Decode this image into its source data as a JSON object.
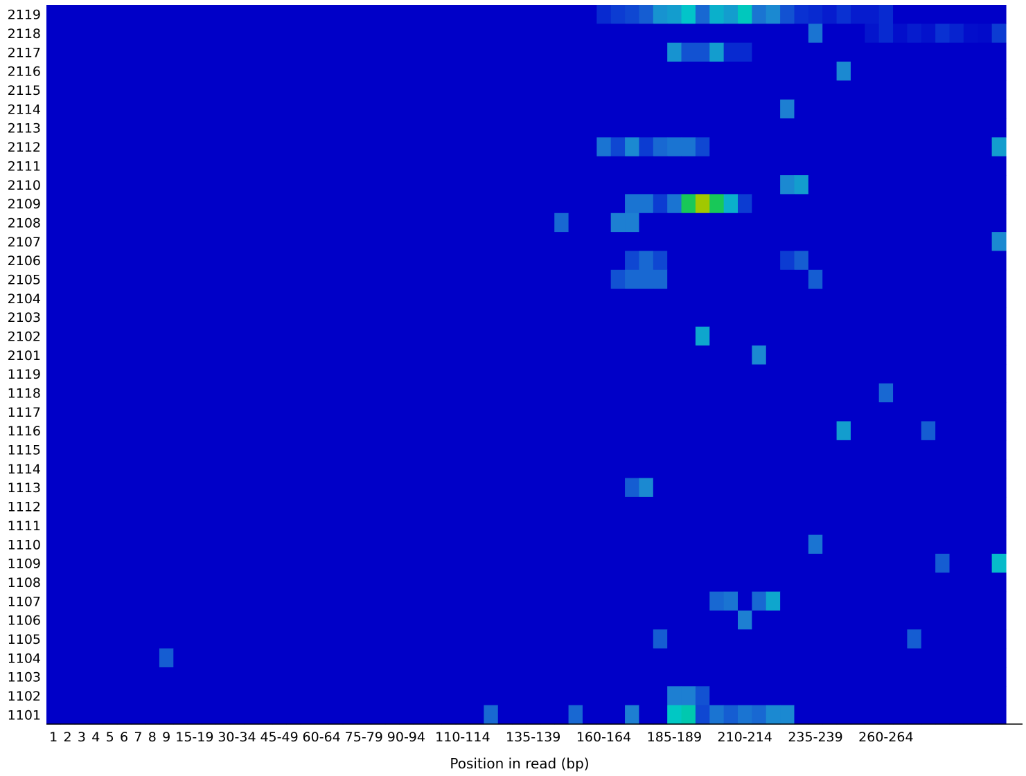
{
  "chart_data": {
    "type": "heatmap",
    "title": "",
    "xlabel": "Position in read (bp)",
    "ylabel": "",
    "grid": false,
    "legend": "none",
    "colormap": [
      "#0000c8",
      "#0a32d2",
      "#1e82d2",
      "#00c8c8",
      "#00c896",
      "#32c814",
      "#a0c800",
      "#c8c800"
    ],
    "x_categories": [
      "1",
      "2",
      "3",
      "4",
      "5",
      "6",
      "7",
      "8",
      "9",
      "10-14",
      "15-19",
      "20-24",
      "25-29",
      "30-34",
      "35-39",
      "40-44",
      "45-49",
      "50-54",
      "55-59",
      "60-64",
      "65-69",
      "70-74",
      "75-79",
      "80-84",
      "85-89",
      "90-94",
      "95-99",
      "100-104",
      "105-109",
      "110-114",
      "115-119",
      "120-124",
      "125-129",
      "130-134",
      "135-139",
      "140-144",
      "145-149",
      "150-154",
      "155-159",
      "160-164",
      "165-169",
      "170-174",
      "175-179",
      "180-184",
      "185-189",
      "190-194",
      "195-199",
      "200-204",
      "205-209",
      "210-214",
      "215-219",
      "220-224",
      "225-229",
      "230-234",
      "235-239",
      "240-244",
      "245-249",
      "250-254",
      "255-259",
      "260-264",
      "265-269",
      "270-274",
      "275-279",
      "280-284",
      "285-289",
      "290-294",
      "295-299",
      "300-301"
    ],
    "x_tick_labels": [
      "1",
      "2",
      "3",
      "4",
      "5",
      "6",
      "7",
      "8",
      "9",
      "15-19",
      "30-34",
      "45-49",
      "60-64",
      "75-79",
      "90-94",
      "110-114",
      "135-139",
      "160-164",
      "185-189",
      "210-214",
      "235-239",
      "260-264"
    ],
    "y_categories": [
      "2119",
      "2118",
      "2117",
      "2116",
      "2115",
      "2114",
      "2113",
      "2112",
      "2111",
      "2110",
      "2109",
      "2108",
      "2107",
      "2106",
      "2105",
      "2104",
      "2103",
      "2102",
      "2101",
      "1119",
      "1118",
      "1117",
      "1116",
      "1115",
      "1114",
      "1113",
      "1112",
      "1111",
      "1110",
      "1109",
      "1108",
      "1107",
      "1106",
      "1105",
      "1104",
      "1103",
      "1102",
      "1101"
    ],
    "value_scale": [
      0,
      10
    ],
    "hotspots": [
      {
        "y": "2119",
        "x": [
          "160-164",
          "165-169",
          "170-174",
          "175-179",
          "180-184",
          "185-189",
          "190-194",
          "195-199",
          "200-204",
          "205-209",
          "210-214",
          "215-219",
          "220-224",
          "225-229",
          "230-234",
          "235-239",
          "240-244",
          "245-249",
          "250-254",
          "255-259",
          "260-264"
        ],
        "values": [
          1.2,
          1.6,
          1.8,
          2.2,
          3.2,
          3.4,
          4.2,
          2.4,
          3.8,
          3.4,
          4.6,
          2.6,
          3.0,
          2.0,
          1.4,
          1.2,
          0.8,
          1.4,
          0.8,
          0.8,
          1.2
        ]
      },
      {
        "y": "2118",
        "x": [
          "235-239",
          "255-259",
          "260-264",
          "265-269",
          "270-274",
          "275-279",
          "280-284",
          "285-289",
          "290-294",
          "295-299",
          "300-301"
        ],
        "values": [
          2.6,
          0.6,
          1.2,
          0.4,
          0.8,
          0.5,
          1.4,
          1.0,
          0.4,
          0.3,
          1.6
        ]
      },
      {
        "y": "2117",
        "x": [
          "185-189",
          "190-194",
          "195-199",
          "200-204",
          "205-209",
          "210-214"
        ],
        "values": [
          3.2,
          2.0,
          2.0,
          3.4,
          1.2,
          1.2
        ]
      },
      {
        "y": "2116",
        "x": [
          "245-249"
        ],
        "values": [
          3.0
        ]
      },
      {
        "y": "2114",
        "x": [
          "225-229"
        ],
        "values": [
          2.8
        ]
      },
      {
        "y": "2112",
        "x": [
          "160-164",
          "165-169",
          "170-174",
          "175-179",
          "180-184",
          "185-189",
          "190-194",
          "195-199",
          "300-301"
        ],
        "values": [
          2.6,
          1.8,
          3.0,
          1.6,
          2.4,
          2.6,
          2.6,
          1.8,
          3.4
        ]
      },
      {
        "y": "2110",
        "x": [
          "225-229",
          "230-234"
        ],
        "values": [
          3.0,
          3.4
        ]
      },
      {
        "y": "2109",
        "x": [
          "170-174",
          "175-179",
          "180-184",
          "185-189",
          "190-194",
          "195-199",
          "200-204",
          "205-209",
          "210-214"
        ],
        "values": [
          2.6,
          2.6,
          1.6,
          2.6,
          6.4,
          8.6,
          6.4,
          3.8,
          1.6
        ]
      },
      {
        "y": "2108",
        "x": [
          "145-149",
          "165-169",
          "170-174"
        ],
        "values": [
          2.4,
          2.8,
          2.8
        ]
      },
      {
        "y": "2107",
        "x": [
          "300-301"
        ],
        "values": [
          3.0
        ]
      },
      {
        "y": "2106",
        "x": [
          "170-174",
          "175-179",
          "180-184",
          "225-229",
          "230-234"
        ],
        "values": [
          1.8,
          2.4,
          1.8,
          1.6,
          2.2
        ]
      },
      {
        "y": "2105",
        "x": [
          "165-169",
          "170-174",
          "175-179",
          "180-184",
          "235-239"
        ],
        "values": [
          2.0,
          2.4,
          2.4,
          2.4,
          2.2
        ]
      },
      {
        "y": "2102",
        "x": [
          "195-199"
        ],
        "values": [
          3.6
        ]
      },
      {
        "y": "2101",
        "x": [
          "215-219"
        ],
        "values": [
          3.0
        ]
      },
      {
        "y": "1118",
        "x": [
          "260-264"
        ],
        "values": [
          2.4
        ]
      },
      {
        "y": "1116",
        "x": [
          "245-249",
          "275-279"
        ],
        "values": [
          3.4,
          2.2
        ]
      },
      {
        "y": "1113",
        "x": [
          "170-174",
          "175-179"
        ],
        "values": [
          2.2,
          3.0
        ]
      },
      {
        "y": "1110",
        "x": [
          "235-239"
        ],
        "values": [
          2.6
        ]
      },
      {
        "y": "1109",
        "x": [
          "280-284",
          "300-301"
        ],
        "values": [
          2.2,
          4.0
        ]
      },
      {
        "y": "1107",
        "x": [
          "200-204",
          "205-209",
          "215-219",
          "220-224"
        ],
        "values": [
          2.4,
          2.6,
          2.4,
          3.6
        ]
      },
      {
        "y": "1106",
        "x": [
          "210-214"
        ],
        "values": [
          2.8
        ]
      },
      {
        "y": "1105",
        "x": [
          "180-184",
          "270-274"
        ],
        "values": [
          2.2,
          2.2
        ]
      },
      {
        "y": "1104",
        "x": [
          "9"
        ],
        "values": [
          2.2
        ]
      },
      {
        "y": "1102",
        "x": [
          "185-189",
          "190-194",
          "195-199"
        ],
        "values": [
          2.8,
          2.8,
          2.0
        ]
      },
      {
        "y": "1101",
        "x": [
          "120-124",
          "150-154",
          "170-174",
          "185-189",
          "190-194",
          "195-199",
          "200-204",
          "205-209",
          "210-214",
          "215-219",
          "220-224",
          "225-229"
        ],
        "values": [
          2.4,
          2.4,
          2.8,
          4.4,
          5.0,
          1.8,
          2.6,
          2.2,
          2.6,
          2.4,
          3.0,
          3.0
        ]
      }
    ]
  }
}
